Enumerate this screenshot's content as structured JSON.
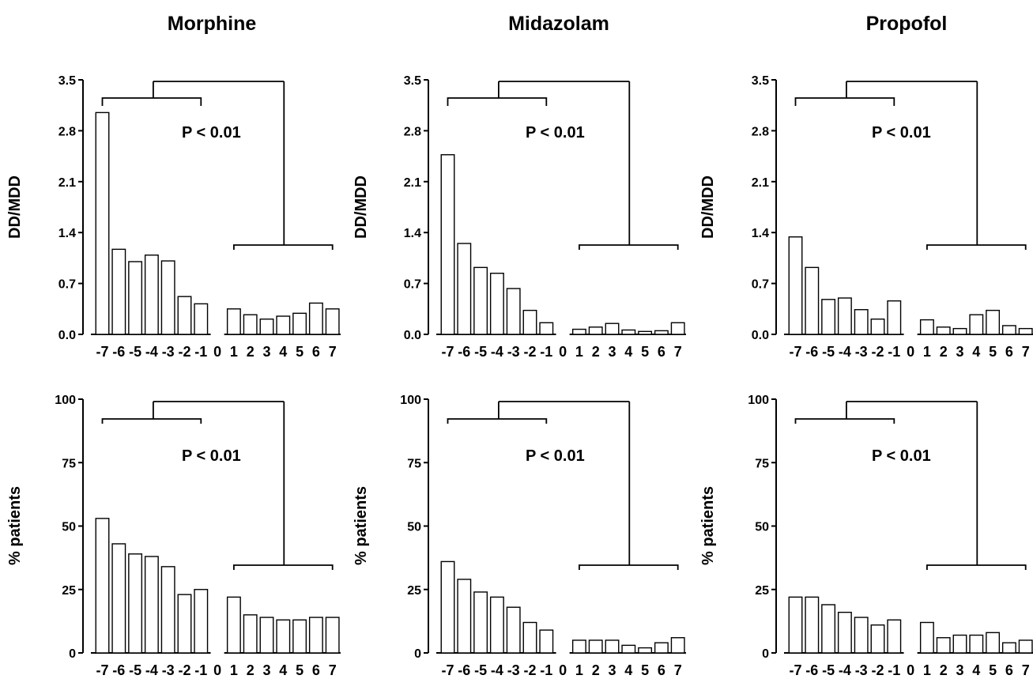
{
  "columns": [
    "Morphine",
    "Midazolam",
    "Propofol"
  ],
  "categories": [
    "-7",
    "-6",
    "-5",
    "-4",
    "-3",
    "-2",
    "-1",
    "0",
    "1",
    "2",
    "3",
    "4",
    "5",
    "6",
    "7"
  ],
  "chart_data": [
    {
      "type": "bar",
      "drug": "Morphine",
      "metric": "ratio",
      "ylabel": "DD/MDD",
      "ylim": [
        0,
        3.5
      ],
      "yticks": [
        "0.0",
        "0.7",
        "1.4",
        "2.1",
        "2.8",
        "3.5"
      ],
      "annotation": "P < 0.01",
      "categories": [
        "-7",
        "-6",
        "-5",
        "-4",
        "-3",
        "-2",
        "-1",
        "0",
        "1",
        "2",
        "3",
        "4",
        "5",
        "6",
        "7"
      ],
      "values": [
        3.05,
        1.17,
        1.0,
        1.09,
        1.01,
        0.52,
        0.42,
        null,
        0.35,
        0.27,
        0.21,
        0.25,
        0.29,
        0.43,
        0.35
      ]
    },
    {
      "type": "bar",
      "drug": "Midazolam",
      "metric": "ratio",
      "ylabel": "DD/MDD",
      "ylim": [
        0,
        3.5
      ],
      "yticks": [
        "0.0",
        "0.7",
        "1.4",
        "2.1",
        "2.8",
        "3.5"
      ],
      "annotation": "P < 0.01",
      "categories": [
        "-7",
        "-6",
        "-5",
        "-4",
        "-3",
        "-2",
        "-1",
        "0",
        "1",
        "2",
        "3",
        "4",
        "5",
        "6",
        "7"
      ],
      "values": [
        2.47,
        1.25,
        0.92,
        0.84,
        0.63,
        0.33,
        0.16,
        null,
        0.07,
        0.1,
        0.15,
        0.06,
        0.04,
        0.05,
        0.16
      ]
    },
    {
      "type": "bar",
      "drug": "Propofol",
      "metric": "ratio",
      "ylabel": "DD/MDD",
      "ylim": [
        0,
        3.5
      ],
      "yticks": [
        "0.0",
        "0.7",
        "1.4",
        "2.1",
        "2.8",
        "3.5"
      ],
      "annotation": "P < 0.01",
      "categories": [
        "-7",
        "-6",
        "-5",
        "-4",
        "-3",
        "-2",
        "-1",
        "0",
        "1",
        "2",
        "3",
        "4",
        "5",
        "6",
        "7"
      ],
      "values": [
        1.34,
        0.92,
        0.48,
        0.5,
        0.34,
        0.21,
        0.46,
        null,
        0.2,
        0.1,
        0.08,
        0.27,
        0.33,
        0.12,
        0.08
      ]
    },
    {
      "type": "bar",
      "drug": "Morphine",
      "metric": "percent",
      "ylabel": "% patients",
      "ylim": [
        0,
        100
      ],
      "yticks": [
        "0",
        "25",
        "50",
        "75",
        "100"
      ],
      "annotation": "P < 0.01",
      "categories": [
        "-7",
        "-6",
        "-5",
        "-4",
        "-3",
        "-2",
        "-1",
        "0",
        "1",
        "2",
        "3",
        "4",
        "5",
        "6",
        "7"
      ],
      "values": [
        53,
        43,
        39,
        38,
        34,
        23,
        25,
        null,
        22,
        15,
        14,
        13,
        13,
        14,
        14
      ]
    },
    {
      "type": "bar",
      "drug": "Midazolam",
      "metric": "percent",
      "ylabel": "% patients",
      "ylim": [
        0,
        100
      ],
      "yticks": [
        "0",
        "25",
        "50",
        "75",
        "100"
      ],
      "annotation": "P < 0.01",
      "categories": [
        "-7",
        "-6",
        "-5",
        "-4",
        "-3",
        "-2",
        "-1",
        "0",
        "1",
        "2",
        "3",
        "4",
        "5",
        "6",
        "7"
      ],
      "values": [
        36,
        29,
        24,
        22,
        18,
        12,
        9,
        null,
        5,
        5,
        5,
        3,
        2,
        4,
        6
      ]
    },
    {
      "type": "bar",
      "drug": "Propofol",
      "metric": "percent",
      "ylabel": "% patients",
      "ylim": [
        0,
        100
      ],
      "yticks": [
        "0",
        "25",
        "50",
        "75",
        "100"
      ],
      "annotation": "P < 0.01",
      "categories": [
        "-7",
        "-6",
        "-5",
        "-4",
        "-3",
        "-2",
        "-1",
        "0",
        "1",
        "2",
        "3",
        "4",
        "5",
        "6",
        "7"
      ],
      "values": [
        22,
        22,
        19,
        16,
        14,
        11,
        13,
        null,
        12,
        6,
        7,
        7,
        8,
        4,
        5
      ]
    }
  ]
}
